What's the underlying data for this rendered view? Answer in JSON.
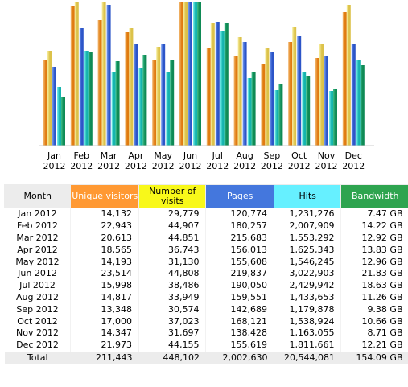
{
  "colors": {
    "unique": "#ff9933",
    "visits": "#f8f81a",
    "pages": "#4477dd",
    "hits": "#66f0ff",
    "bandwidth": "#2ea44f",
    "month_header": "#ececec"
  },
  "chart_data": {
    "type": "bar",
    "categories": [
      "Jan 2012",
      "Feb 2012",
      "Mar 2012",
      "Apr 2012",
      "May 2012",
      "Jun 2012",
      "Jul 2012",
      "Aug 2012",
      "Sep 2012",
      "Oct 2012",
      "Nov 2012",
      "Dec 2012"
    ],
    "series": [
      {
        "name": "Unique visitors",
        "values": [
          14132,
          22943,
          20613,
          18565,
          14193,
          23514,
          15998,
          14817,
          13348,
          17000,
          14347,
          21973
        ]
      },
      {
        "name": "Number of visits",
        "values": [
          29779,
          44907,
          44851,
          36743,
          31130,
          44808,
          38486,
          33949,
          30574,
          37023,
          31697,
          44155
        ]
      },
      {
        "name": "Pages",
        "values": [
          120774,
          180257,
          215683,
          156013,
          155608,
          219837,
          190050,
          159551,
          142689,
          168121,
          138428,
          155619
        ]
      },
      {
        "name": "Hits",
        "values": [
          1231276,
          2007909,
          1553292,
          1625343,
          1546245,
          3022903,
          2429942,
          1433653,
          1179878,
          1538924,
          1163055,
          1811661
        ]
      },
      {
        "name": "Bandwidth",
        "values": [
          7.47,
          14.22,
          12.92,
          13.83,
          12.96,
          21.83,
          18.63,
          11.26,
          9.38,
          10.66,
          8.71,
          12.21
        ]
      }
    ],
    "bandwidth_unit": "GB",
    "grid": false,
    "legend": "none"
  },
  "table": {
    "headers": {
      "month": "Month",
      "unique": "Unique visitors",
      "visits": "Number of visits",
      "pages": "Pages",
      "hits": "Hits",
      "bandwidth": "Bandwidth"
    },
    "rows": [
      [
        "Jan 2012",
        "14,132",
        "29,779",
        "120,774",
        "1,231,276",
        "7.47 GB"
      ],
      [
        "Feb 2012",
        "22,943",
        "44,907",
        "180,257",
        "2,007,909",
        "14.22 GB"
      ],
      [
        "Mar 2012",
        "20,613",
        "44,851",
        "215,683",
        "1,553,292",
        "12.92 GB"
      ],
      [
        "Apr 2012",
        "18,565",
        "36,743",
        "156,013",
        "1,625,343",
        "13.83 GB"
      ],
      [
        "May 2012",
        "14,193",
        "31,130",
        "155,608",
        "1,546,245",
        "12.96 GB"
      ],
      [
        "Jun 2012",
        "23,514",
        "44,808",
        "219,837",
        "3,022,903",
        "21.83 GB"
      ],
      [
        "Jul 2012",
        "15,998",
        "38,486",
        "190,050",
        "2,429,942",
        "18.63 GB"
      ],
      [
        "Aug 2012",
        "14,817",
        "33,949",
        "159,551",
        "1,433,653",
        "11.26 GB"
      ],
      [
        "Sep 2012",
        "13,348",
        "30,574",
        "142,689",
        "1,179,878",
        "9.38 GB"
      ],
      [
        "Oct 2012",
        "17,000",
        "37,023",
        "168,121",
        "1,538,924",
        "10.66 GB"
      ],
      [
        "Nov 2012",
        "14,347",
        "31,697",
        "138,428",
        "1,163,055",
        "8.71 GB"
      ],
      [
        "Dec 2012",
        "21,973",
        "44,155",
        "155,619",
        "1,811,661",
        "12.21 GB"
      ]
    ],
    "total": [
      "Total",
      "211,443",
      "448,102",
      "2,002,630",
      "20,544,081",
      "154.09 GB"
    ]
  }
}
